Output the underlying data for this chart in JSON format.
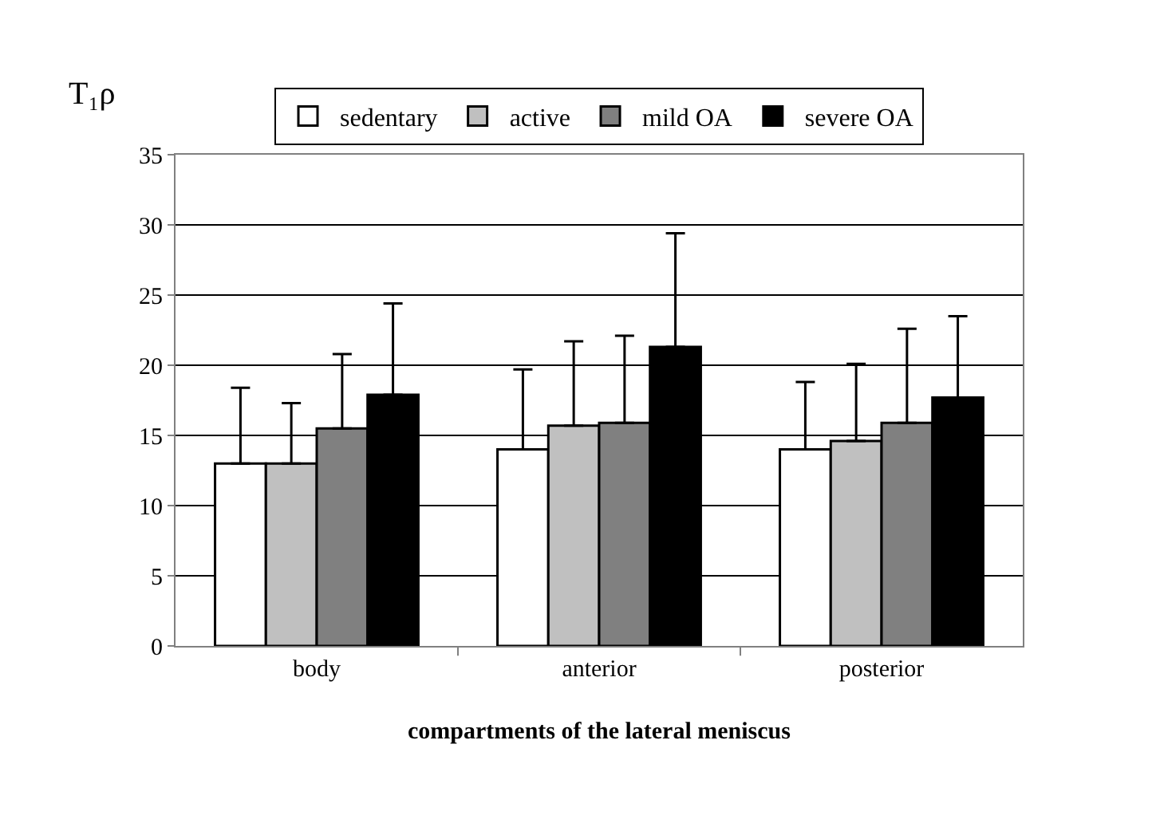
{
  "chart_data": {
    "type": "bar",
    "ylabel": "T₁ρ",
    "xlabel": "compartments of the lateral meniscus",
    "categories": [
      "body",
      "anterior",
      "posterior"
    ],
    "series": [
      {
        "name": "sedentary",
        "color": "#ffffff",
        "values": [
          13.0,
          14.0,
          14.0
        ],
        "errors": [
          [
            13.0,
            18.4
          ],
          [
            14.0,
            19.7
          ],
          [
            14.0,
            18.8
          ]
        ]
      },
      {
        "name": "active",
        "color": "#c0c0c0",
        "values": [
          13.0,
          15.7,
          14.6
        ],
        "errors": [
          [
            13.0,
            17.3
          ],
          [
            15.7,
            21.7
          ],
          [
            14.6,
            20.1
          ]
        ]
      },
      {
        "name": "mild OA",
        "color": "#808080",
        "values": [
          15.5,
          15.9,
          15.9
        ],
        "errors": [
          [
            15.5,
            20.8
          ],
          [
            15.9,
            22.1
          ],
          [
            15.9,
            22.6
          ]
        ]
      },
      {
        "name": "severe OA",
        "color": "#000000",
        "values": [
          17.9,
          21.3,
          17.7
        ],
        "errors": [
          [
            17.9,
            24.4
          ],
          [
            21.3,
            29.4
          ],
          [
            17.7,
            23.5
          ]
        ]
      }
    ],
    "ylim": [
      0,
      35
    ],
    "yticks": [
      0,
      5,
      10,
      15,
      20,
      25,
      30,
      35
    ],
    "grid": "y",
    "legend": "top"
  }
}
